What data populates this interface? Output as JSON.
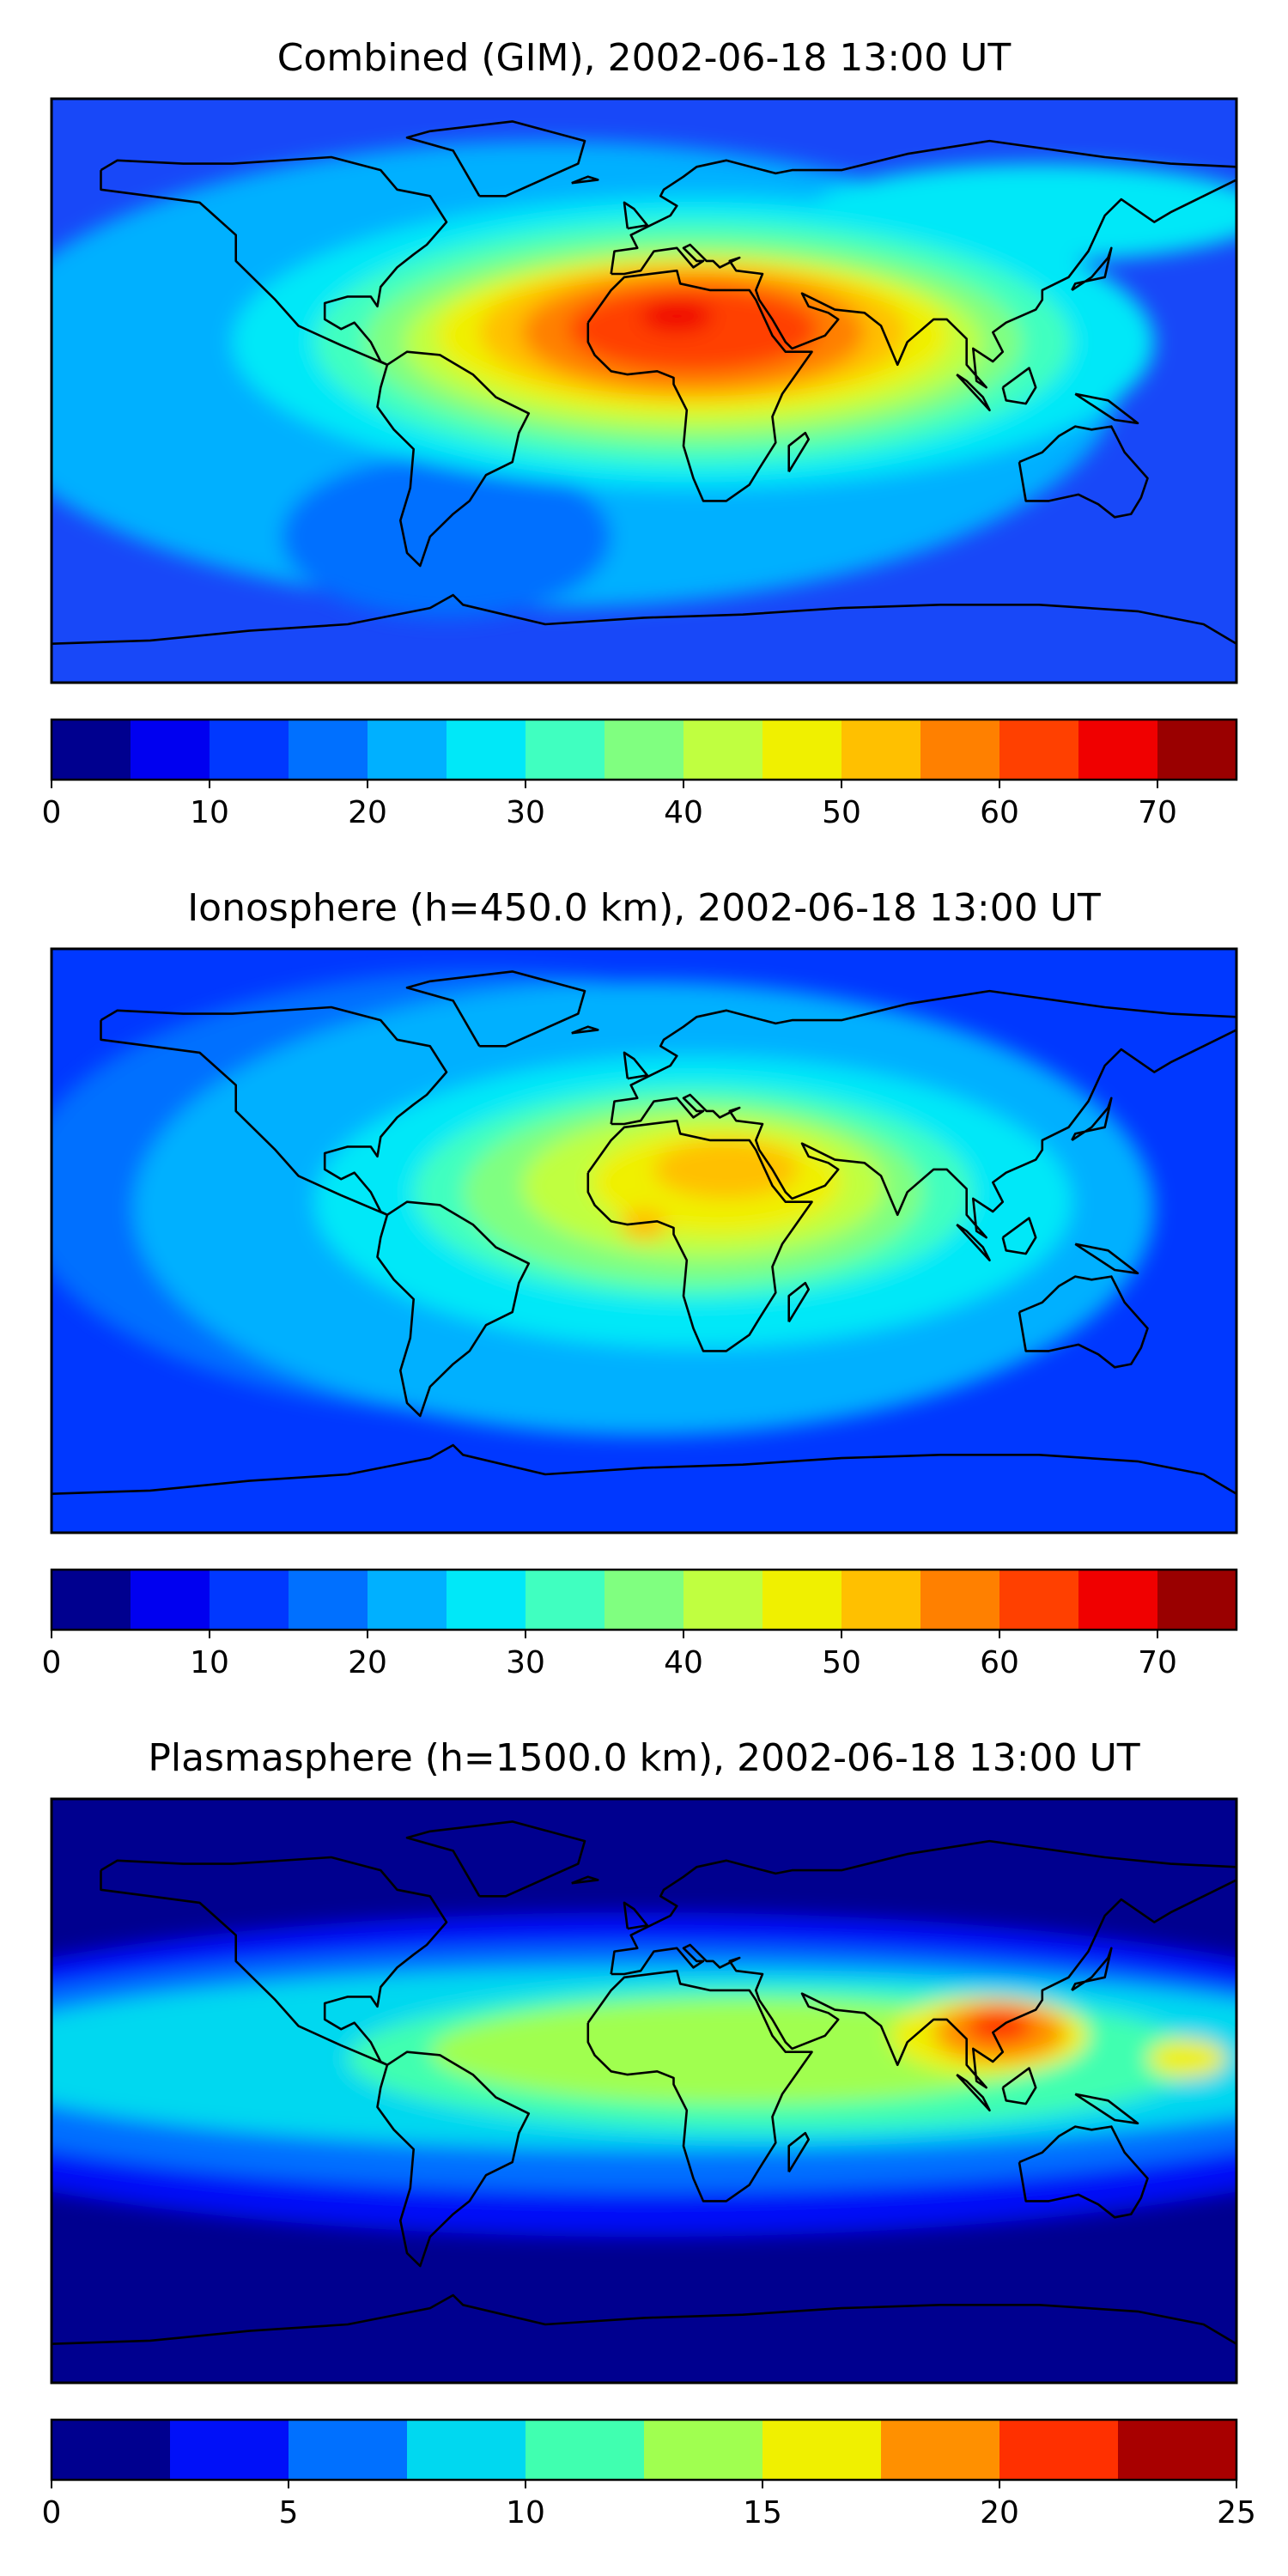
{
  "figure": {
    "panels": [
      {
        "title": "Combined (GIM), 2002-06-18 13:00 UT",
        "colorbar": {
          "colors": [
            "#00008f",
            "#0000f0",
            "#0038ff",
            "#0070ff",
            "#00b0ff",
            "#00e8f8",
            "#40ffc0",
            "#80ff80",
            "#c0ff40",
            "#f0f000",
            "#ffc000",
            "#ff8000",
            "#ff4000",
            "#f00000",
            "#9a0000"
          ],
          "ticks": [
            "0",
            "10",
            "20",
            "30",
            "40",
            "50",
            "60",
            "70"
          ],
          "tick_values": [
            0,
            10,
            20,
            30,
            40,
            50,
            60,
            70
          ],
          "min": 0,
          "max": 75
        },
        "background": "#1848f8",
        "blobs": [
          {
            "lon": -30,
            "lat": 5,
            "rlon": 175,
            "rlat": 72,
            "color": "#00b0ff"
          },
          {
            "lon": -60,
            "lat": -45,
            "rlon": 50,
            "rlat": 25,
            "color": "#0070ff"
          },
          {
            "lon": 120,
            "lat": 55,
            "rlon": 70,
            "rlat": 15,
            "color": "#00e8f8"
          },
          {
            "lon": 15,
            "lat": 15,
            "rlon": 140,
            "rlat": 45,
            "color": "#00e8f8"
          },
          {
            "lon": 15,
            "lat": 15,
            "rlon": 115,
            "rlat": 38,
            "color": "#40ffc0"
          },
          {
            "lon": 15,
            "lat": 15,
            "rlon": 100,
            "rlat": 32,
            "color": "#80ff80"
          },
          {
            "lon": 15,
            "lat": 15,
            "rlon": 88,
            "rlat": 27,
            "color": "#c0ff40"
          },
          {
            "lon": 15,
            "lat": 17,
            "rlon": 78,
            "rlat": 24,
            "color": "#f0f000"
          },
          {
            "lon": 15,
            "lat": 18,
            "rlon": 65,
            "rlat": 21,
            "color": "#ffc000"
          },
          {
            "lon": 15,
            "lat": 18,
            "rlon": 52,
            "rlat": 18,
            "color": "#ff8000"
          },
          {
            "lon": 15,
            "lat": 19,
            "rlon": 38,
            "rlat": 13,
            "color": "#ff4000"
          },
          {
            "lon": 10,
            "lat": 23,
            "rlon": 11,
            "rlat": 5,
            "color": "#f00000"
          }
        ]
      },
      {
        "title": "Ionosphere  (h=450.0 km), 2002-06-18 13:00 UT",
        "colorbar": {
          "colors": [
            "#00008f",
            "#0000f0",
            "#0038ff",
            "#0070ff",
            "#00b0ff",
            "#00e8f8",
            "#40ffc0",
            "#80ff80",
            "#c0ff40",
            "#f0f000",
            "#ffc000",
            "#ff8000",
            "#ff4000",
            "#f00000",
            "#9a0000"
          ],
          "ticks": [
            "0",
            "10",
            "20",
            "30",
            "40",
            "50",
            "60",
            "70"
          ],
          "tick_values": [
            0,
            10,
            20,
            30,
            40,
            50,
            60,
            70
          ],
          "min": 0,
          "max": 75
        },
        "background": "#0038ff",
        "blobs": [
          {
            "lon": -50,
            "lat": 15,
            "rlon": 140,
            "rlat": 68,
            "color": "#0070ff"
          },
          {
            "lon": 0,
            "lat": 10,
            "rlon": 155,
            "rlat": 70,
            "color": "#00b0ff"
          },
          {
            "lon": 15,
            "lat": 12,
            "rlon": 115,
            "rlat": 45,
            "color": "#00e8f8"
          },
          {
            "lon": 15,
            "lat": 15,
            "rlon": 85,
            "rlat": 33,
            "color": "#40ffc0"
          },
          {
            "lon": 15,
            "lat": 15,
            "rlon": 70,
            "rlat": 28,
            "color": "#80ff80"
          },
          {
            "lon": 18,
            "lat": 17,
            "rlon": 55,
            "rlat": 22,
            "color": "#c0ff40"
          },
          {
            "lon": 22,
            "lat": 18,
            "rlon": 38,
            "rlat": 16,
            "color": "#f0f000"
          },
          {
            "lon": 25,
            "lat": 22,
            "rlon": 22,
            "rlat": 9,
            "color": "#ffc000"
          },
          {
            "lon": 0,
            "lat": 5,
            "rlon": 7,
            "rlat": 5,
            "color": "#ffc000"
          }
        ]
      },
      {
        "title": "Plasmasphere (h=1500.0 km), 2002-06-18 13:00 UT",
        "colorbar": {
          "colors": [
            "#00008f",
            "#0010f8",
            "#0070ff",
            "#00d8f0",
            "#40ffb0",
            "#a0ff50",
            "#f0f000",
            "#ff9000",
            "#ff3000",
            "#a80000"
          ],
          "ticks": [
            "0",
            "5",
            "10",
            "15",
            "20",
            "25"
          ],
          "tick_values": [
            0,
            5,
            10,
            15,
            20,
            25
          ],
          "min": 0,
          "max": 25
        },
        "background": "#00008f",
        "blobs": [
          {
            "lon": 0,
            "lat": 5,
            "rlon": 260,
            "rlat": 50,
            "color": "#0010f8"
          },
          {
            "lon": 0,
            "lat": 7,
            "rlon": 240,
            "rlat": 38,
            "color": "#0070ff"
          },
          {
            "lon": 10,
            "lat": 10,
            "rlon": 220,
            "rlat": 28,
            "color": "#00d8f0"
          },
          {
            "lon": 40,
            "lat": 10,
            "rlon": 130,
            "rlat": 22,
            "color": "#40ffb0"
          },
          {
            "lon": 30,
            "lat": 12,
            "rlon": 95,
            "rlat": 16,
            "color": "#a0ff50"
          },
          {
            "lon": 105,
            "lat": 17,
            "rlon": 30,
            "rlat": 12,
            "color": "#f0f000"
          },
          {
            "lon": 108,
            "lat": 18,
            "rlon": 20,
            "rlat": 9,
            "color": "#ff9000"
          },
          {
            "lon": 108,
            "lat": 20,
            "rlon": 10,
            "rlat": 5,
            "color": "#ff3000"
          },
          {
            "lon": 165,
            "lat": 10,
            "rlon": 12,
            "rlat": 6,
            "color": "#f0f000"
          }
        ]
      }
    ]
  }
}
